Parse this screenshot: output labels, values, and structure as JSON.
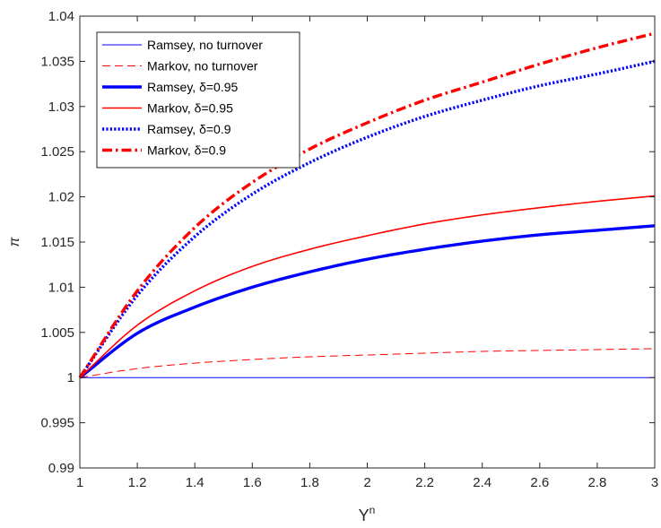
{
  "chart_data": {
    "type": "line",
    "title": "",
    "xlabel": "Y",
    "xlabel_superscript": "n",
    "ylabel": "π",
    "xlim": [
      1,
      3
    ],
    "ylim": [
      0.99,
      1.04
    ],
    "xticks": [
      1,
      1.2,
      1.4,
      1.6,
      1.8,
      2,
      2.2,
      2.4,
      2.6,
      2.8,
      3
    ],
    "xtick_labels": [
      "1",
      "1.2",
      "1.4",
      "1.6",
      "1.8",
      "2",
      "2.2",
      "2.4",
      "2.6",
      "2.8",
      "3"
    ],
    "yticks": [
      0.99,
      0.995,
      1,
      1.005,
      1.01,
      1.015,
      1.02,
      1.025,
      1.03,
      1.035,
      1.04
    ],
    "ytick_labels": [
      "0.99",
      "0.995",
      "1",
      "1.005",
      "1.01",
      "1.015",
      "1.02",
      "1.025",
      "1.03",
      "1.035",
      "1.04"
    ],
    "grid": false,
    "legend_position": "top-left",
    "x": [
      1,
      1.2,
      1.4,
      1.6,
      1.8,
      2,
      2.2,
      2.4,
      2.6,
      2.8,
      3
    ],
    "series": [
      {
        "name": "Ramsey, no turnover",
        "color": "#0000ff",
        "style": "solid",
        "weight": "thin",
        "values": [
          1,
          1,
          1,
          1,
          1,
          1,
          1,
          1,
          1,
          1,
          1
        ]
      },
      {
        "name": "Markov, no turnover",
        "color": "#ff0000",
        "style": "dashed",
        "weight": "thin",
        "values": [
          1,
          1.001,
          1.0016,
          1.002,
          1.0023,
          1.0025,
          1.0027,
          1.0029,
          1.003,
          1.0031,
          1.0032
        ]
      },
      {
        "name": "Ramsey, δ=0.95",
        "color": "#0000ff",
        "style": "solid",
        "weight": "thick",
        "values": [
          1,
          1.0049,
          1.0078,
          1.01,
          1.0117,
          1.0131,
          1.0142,
          1.0151,
          1.0158,
          1.0163,
          1.0168
        ]
      },
      {
        "name": "Markov, δ=0.95",
        "color": "#ff0000",
        "style": "solid",
        "weight": "medium",
        "values": [
          1,
          1.0058,
          1.0096,
          1.0123,
          1.0142,
          1.0157,
          1.017,
          1.018,
          1.0188,
          1.0195,
          1.0201
        ]
      },
      {
        "name": "Ramsey, δ=0.9",
        "color": "#0000ff",
        "style": "dotted",
        "weight": "thick",
        "values": [
          1,
          1.0091,
          1.0156,
          1.0203,
          1.0238,
          1.0266,
          1.0289,
          1.0307,
          1.0323,
          1.0336,
          1.035
        ]
      },
      {
        "name": "Markov, δ=0.9",
        "color": "#ff0000",
        "style": "dashdot",
        "weight": "thick",
        "values": [
          1,
          1.0096,
          1.0166,
          1.0216,
          1.0253,
          1.0282,
          1.0307,
          1.0327,
          1.0347,
          1.0365,
          1.0381
        ]
      }
    ]
  }
}
